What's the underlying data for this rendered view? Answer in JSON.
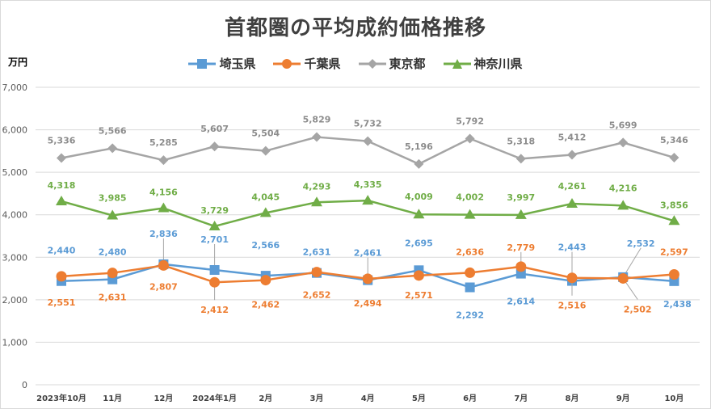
{
  "chart_data": {
    "type": "line",
    "title": "首都圏の平均成約価格推移",
    "ylabel": "万円",
    "ylim": [
      0,
      7000
    ],
    "yticks": [
      "0",
      "1,000",
      "2,000",
      "3,000",
      "4,000",
      "5,000",
      "6,000",
      "7,000"
    ],
    "categories": [
      "2023年10月",
      "11月",
      "12月",
      "2024年1月",
      "2月",
      "3月",
      "4月",
      "5月",
      "6月",
      "7月",
      "8月",
      "9月",
      "10月"
    ],
    "series": [
      {
        "name": "埼玉県",
        "color": "#5b9bd5",
        "marker": "square",
        "values": [
          2440,
          2480,
          2836,
          2701,
          2566,
          2631,
          2461,
          2695,
          2292,
          2614,
          2443,
          2532,
          2438
        ],
        "labels": [
          "2,440",
          "2,480",
          "2,836",
          "2,701",
          "2,566",
          "2,631",
          "2,461",
          "2,695",
          "2,292",
          "2,614",
          "2,443",
          "2,532",
          "2,438"
        ]
      },
      {
        "name": "千葉県",
        "color": "#ed7d31",
        "marker": "circle",
        "values": [
          2551,
          2631,
          2807,
          2412,
          2462,
          2652,
          2494,
          2571,
          2636,
          2779,
          2516,
          2502,
          2597
        ],
        "labels": [
          "2,551",
          "2,631",
          "2,807",
          "2,412",
          "2,462",
          "2,652",
          "2,494",
          "2,571",
          "2,636",
          "2,779",
          "2,516",
          "2,502",
          "2,597"
        ]
      },
      {
        "name": "東京都",
        "color": "#a5a5a5",
        "marker": "diamond",
        "values": [
          5336,
          5566,
          5285,
          5607,
          5504,
          5829,
          5732,
          5196,
          5792,
          5318,
          5412,
          5699,
          5346
        ],
        "labels": [
          "5,336",
          "5,566",
          "5,285",
          "5,607",
          "5,504",
          "5,829",
          "5,732",
          "5,196",
          "5,792",
          "5,318",
          "5,412",
          "5,699",
          "5,346"
        ]
      },
      {
        "name": "神奈川県",
        "color": "#70ad47",
        "marker": "triangle",
        "values": [
          4318,
          3985,
          4156,
          3729,
          4045,
          4293,
          4335,
          4009,
          4002,
          3997,
          4261,
          4216,
          3856
        ],
        "labels": [
          "4,318",
          "3,985",
          "4,156",
          "3,729",
          "4,045",
          "4,293",
          "4,335",
          "4,009",
          "4,002",
          "3,997",
          "4,261",
          "4,216",
          "3,856"
        ]
      }
    ]
  }
}
